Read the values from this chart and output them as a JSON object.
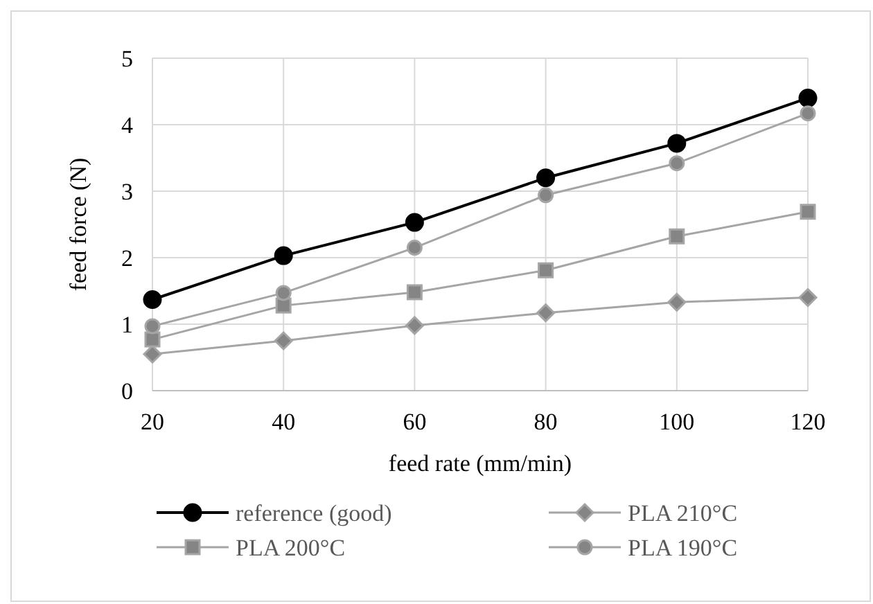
{
  "chart_data": {
    "type": "line",
    "xlabel": "feed rate (mm/min)",
    "ylabel": "feed force (N)",
    "x": [
      20,
      40,
      60,
      80,
      100,
      120
    ],
    "xlim": [
      20,
      120
    ],
    "xticks": [
      20,
      40,
      60,
      80,
      100,
      120
    ],
    "ylim": [
      0,
      5
    ],
    "yticks": [
      0,
      1,
      2,
      3,
      4,
      5
    ],
    "grid": true,
    "legend": "bottom",
    "line_style": "solid",
    "series": [
      {
        "name": "reference (good)",
        "color": "#000000",
        "marker": "circle",
        "values": [
          1.37,
          2.03,
          2.53,
          3.2,
          3.72,
          4.4
        ]
      },
      {
        "name": "PLA 210°C",
        "color": "#a5a5a5",
        "marker": "diamond",
        "values": [
          0.55,
          0.75,
          0.98,
          1.17,
          1.33,
          1.4
        ]
      },
      {
        "name": "PLA 200°C",
        "color": "#a5a5a5",
        "marker": "square",
        "values": [
          0.77,
          1.28,
          1.48,
          1.81,
          2.32,
          2.69
        ]
      },
      {
        "name": "PLA 190°C",
        "color": "#a5a5a5",
        "marker": "circle",
        "values": [
          0.97,
          1.47,
          2.15,
          2.94,
          3.42,
          4.17
        ]
      }
    ]
  }
}
